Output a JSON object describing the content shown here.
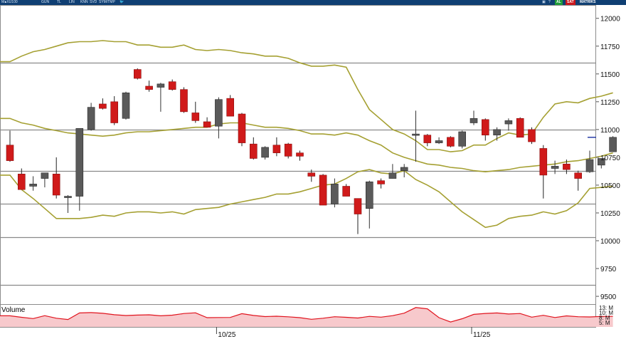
{
  "toolbar": {
    "symbol": "M∎XU100",
    "items": [
      "GUN",
      "TL",
      "LIN",
      "KNN",
      "SVD",
      "SYM/TMP"
    ],
    "right_items": [
      "AL",
      "SAT",
      "MATRIKS"
    ]
  },
  "chart_data": {
    "type": "candlestick",
    "y_ticks": [
      9500,
      9750,
      10000,
      10250,
      10500,
      10750,
      11000,
      11250,
      11500,
      11750,
      12000
    ],
    "ylim": [
      9430,
      12120
    ],
    "x_ticks": [
      {
        "index": 18,
        "label": "10/25"
      },
      {
        "index": 40,
        "label": "11/25"
      }
    ],
    "horizontal_lines": [
      11600,
      11000,
      10630,
      10330,
      10030,
      9600
    ],
    "last_price": 10930,
    "candles": [
      [
        10860,
        10990,
        10710,
        10720
      ],
      [
        10600,
        10650,
        10470,
        10460
      ],
      [
        10490,
        10580,
        10450,
        10510
      ],
      [
        10560,
        10600,
        10480,
        10610
      ],
      [
        10600,
        10750,
        10380,
        10410
      ],
      [
        10390,
        10410,
        10250,
        10400
      ],
      [
        10400,
        11010,
        10270,
        11010
      ],
      [
        11000,
        11240,
        10990,
        11200
      ],
      [
        11230,
        11280,
        11180,
        11190
      ],
      [
        11250,
        11300,
        11040,
        11060
      ],
      [
        11100,
        11340,
        11090,
        11330
      ],
      [
        11540,
        11550,
        11450,
        11460
      ],
      [
        11390,
        11440,
        11340,
        11360
      ],
      [
        11380,
        11420,
        11160,
        11410
      ],
      [
        11430,
        11450,
        11350,
        11360
      ],
      [
        11360,
        11380,
        11150,
        11160
      ],
      [
        11150,
        11250,
        11060,
        11080
      ],
      [
        11070,
        11110,
        11030,
        11020
      ],
      [
        11030,
        11290,
        10920,
        11270
      ],
      [
        11280,
        11310,
        11130,
        11120
      ],
      [
        11140,
        11150,
        10850,
        10880
      ],
      [
        10870,
        10930,
        10730,
        10740
      ],
      [
        10750,
        10850,
        10730,
        10840
      ],
      [
        10860,
        10930,
        10760,
        10790
      ],
      [
        10870,
        10880,
        10740,
        10760
      ],
      [
        10790,
        10810,
        10720,
        10760
      ],
      [
        10610,
        10640,
        10530,
        10580
      ],
      [
        10590,
        10600,
        10320,
        10320
      ],
      [
        10330,
        10560,
        10300,
        10510
      ],
      [
        10490,
        10510,
        10400,
        10400
      ],
      [
        10380,
        10380,
        10060,
        10240
      ],
      [
        10290,
        10540,
        10110,
        10530
      ],
      [
        10540,
        10560,
        10470,
        10510
      ],
      [
        10560,
        10690,
        10560,
        10610
      ],
      [
        10630,
        10690,
        10570,
        10660
      ],
      [
        10960,
        11170,
        10710,
        10960
      ],
      [
        10950,
        10960,
        10850,
        10880
      ],
      [
        10880,
        10930,
        10870,
        10900
      ],
      [
        10930,
        10940,
        10840,
        10850
      ],
      [
        10850,
        10990,
        10830,
        10980
      ],
      [
        11060,
        11170,
        11040,
        11100
      ],
      [
        11090,
        11100,
        10900,
        10950
      ],
      [
        10950,
        11020,
        10900,
        11000
      ],
      [
        11050,
        11100,
        10990,
        11080
      ],
      [
        11100,
        11110,
        10940,
        10930
      ],
      [
        11000,
        11020,
        10870,
        10890
      ],
      [
        10830,
        10860,
        10380,
        10590
      ],
      [
        10650,
        10720,
        10600,
        10670
      ],
      [
        10690,
        10730,
        10600,
        10640
      ],
      [
        10610,
        10630,
        10450,
        10560
      ],
      [
        10620,
        10810,
        10610,
        10730
      ],
      [
        10680,
        10730,
        10650,
        10740
      ],
      [
        10800,
        10940,
        10800,
        10930
      ]
    ],
    "bands": {
      "upper": [
        11610,
        11660,
        11700,
        11720,
        11750,
        11780,
        11790,
        11790,
        11800,
        11790,
        11790,
        11760,
        11760,
        11740,
        11740,
        11760,
        11720,
        11710,
        11720,
        11710,
        11690,
        11680,
        11660,
        11660,
        11640,
        11600,
        11570,
        11570,
        11580,
        11560,
        11360,
        11180,
        11090,
        11000,
        10960,
        10900,
        10820,
        10820,
        10800,
        10810,
        10860,
        10860,
        10920,
        10970,
        10950,
        10960,
        11110,
        11230,
        11250,
        11240,
        11280,
        11300,
        11330
      ],
      "middle": [
        11100,
        11060,
        11040,
        11010,
        10990,
        10970,
        10960,
        10950,
        10940,
        10950,
        10970,
        10980,
        10980,
        10990,
        11000,
        11010,
        11020,
        11020,
        11050,
        11060,
        11060,
        11040,
        11020,
        11020,
        11010,
        10990,
        10960,
        10960,
        10950,
        10970,
        10950,
        10900,
        10860,
        10790,
        10750,
        10720,
        10690,
        10680,
        10660,
        10650,
        10630,
        10620,
        10630,
        10640,
        10660,
        10670,
        10680,
        10690,
        10710,
        10720,
        10740,
        10760,
        10790
      ],
      "lower": [
        10590,
        10460,
        10380,
        10290,
        10200,
        10200,
        10200,
        10210,
        10230,
        10220,
        10250,
        10260,
        10260,
        10250,
        10260,
        10240,
        10280,
        10290,
        10300,
        10330,
        10350,
        10370,
        10390,
        10420,
        10420,
        10440,
        10470,
        10500,
        10510,
        10560,
        10620,
        10640,
        10610,
        10600,
        10630,
        10550,
        10500,
        10440,
        10350,
        10260,
        10190,
        10120,
        10140,
        10200,
        10220,
        10230,
        10260,
        10240,
        10270,
        10340,
        10470,
        10480,
        10490
      ]
    },
    "volume": {
      "label": "Volume",
      "axis_labels": [
        "13: M",
        "10: M",
        "8: M",
        "5: M"
      ],
      "values": [
        9.5,
        8.2,
        7.1,
        9.6,
        7.4,
        6.3,
        11.9,
        12.2,
        11.6,
        10.4,
        9.7,
        10.1,
        10.3,
        9.5,
        10.0,
        11.4,
        12.0,
        7.9,
        8.0,
        8.1,
        11.3,
        9.8,
        8.8,
        9.1,
        8.6,
        7.9,
        6.5,
        7.4,
        8.7,
        8.2,
        7.6,
        9.0,
        8.3,
        9.6,
        11.7,
        16.5,
        15.4,
        7.9,
        4.2,
        7.0,
        10.7,
        11.5,
        11.9,
        11.0,
        11.4,
        8.3,
        9.9,
        8.0,
        9.4,
        8.7,
        8.5,
        8.9,
        9.0
      ]
    }
  }
}
